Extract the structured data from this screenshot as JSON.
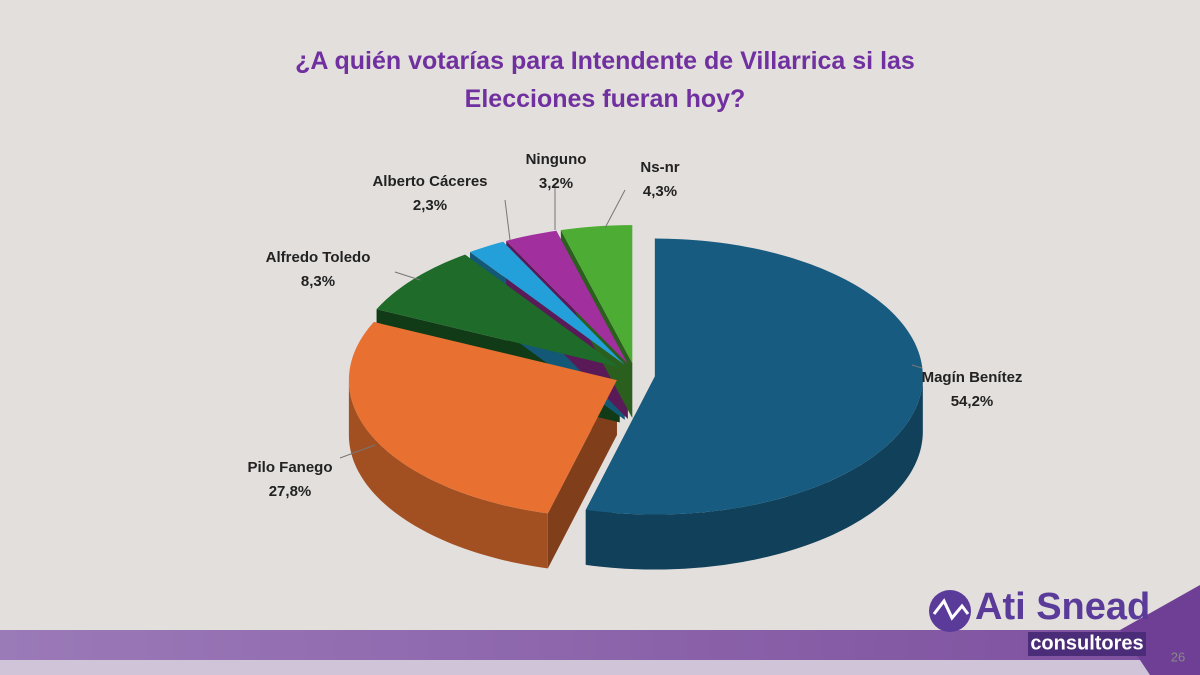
{
  "chart_data": {
    "type": "pie3d",
    "title": "¿A quién votarías para Intendente de Villarrica si las Elecciones fueran hoy?",
    "categories": [
      "Magín Benítez",
      "Pilo Fanego",
      "Alfredo Toledo",
      "Alberto Cáceres",
      "Ninguno",
      "Ns-nr"
    ],
    "values": [
      54.2,
      27.8,
      8.3,
      2.3,
      3.2,
      4.3
    ],
    "value_labels": [
      "54,2%",
      "27,8%",
      "8,3%",
      "2,3%",
      "3,2%",
      "4,3%"
    ],
    "colors": [
      "#175c80",
      "#e87131",
      "#1e6b2a",
      "#23a0d9",
      "#a12f9e",
      "#4dac34"
    ]
  },
  "logo": {
    "name": "Ati Snead",
    "tagline": "consultores"
  },
  "page_number": 26
}
